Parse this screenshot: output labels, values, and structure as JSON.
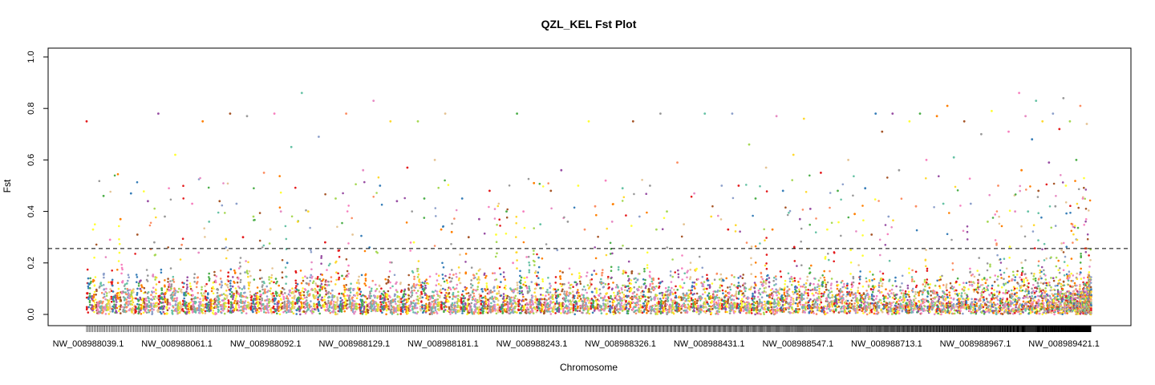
{
  "chart_data": {
    "type": "scatter",
    "title": "QZL_KEL Fst Plot",
    "xlabel": "Chromosome",
    "ylabel": "Fst",
    "ylim": [
      0,
      1
    ],
    "yticks": [
      "0.0",
      "0.2",
      "0.4",
      "0.6",
      "0.8",
      "1.0"
    ],
    "xticklabels": [
      "NW_008988039.1",
      "NW_008988061.1",
      "NW_008988092.1",
      "NW_008988129.1",
      "NW_008988181.1",
      "NW_008988243.1",
      "NW_008988326.1",
      "NW_008988431.1",
      "NW_008988547.1",
      "NW_008988713.1",
      "NW_008988967.1",
      "NW_008989421.1"
    ],
    "threshold": 0.256,
    "threshold_style": "dashed",
    "palette": [
      "#e41a1c",
      "#377eb8",
      "#4daf4a",
      "#984ea3",
      "#ff7f00",
      "#ffff33",
      "#a65628",
      "#f781bf",
      "#999999",
      "#66c2a5",
      "#fc8d62",
      "#8da0cb",
      "#e78ac3",
      "#a6d854",
      "#ffd92f",
      "#e5c494"
    ],
    "scaffold_count": 1250,
    "series": [
      {
        "values": [
          0.75,
          0.47,
          0.46,
          0.44,
          0.37,
          0.33,
          0.31,
          0.29,
          0.28,
          0.12,
          0.05,
          0.02
        ]
      },
      {
        "values": [
          0.78,
          0.75,
          0.62,
          0.44,
          0.43,
          0.38,
          0.36,
          0.27,
          0.26,
          0.24,
          0.1,
          0.03
        ]
      },
      {
        "values": [
          0.78,
          0.78,
          0.77,
          0.65,
          0.55,
          0.43,
          0.4,
          0.38,
          0.36,
          0.33,
          0.3,
          0.2,
          0.09,
          0.01
        ]
      },
      {
        "values": [
          0.86,
          0.78,
          0.69,
          0.56,
          0.45,
          0.4,
          0.31,
          0.28,
          0.26,
          0.15,
          0.02
        ]
      },
      {
        "values": [
          0.83,
          0.75,
          0.75,
          0.6,
          0.57,
          0.5,
          0.45,
          0.44,
          0.33,
          0.28,
          0.12,
          0.04
        ]
      },
      {
        "values": [
          0.78,
          0.48,
          0.45,
          0.4,
          0.37,
          0.32,
          0.31,
          0.3,
          0.2,
          0.03
        ]
      },
      {
        "values": [
          0.78,
          0.56,
          0.51,
          0.5,
          0.48,
          0.4,
          0.36,
          0.35,
          0.33,
          0.25,
          0.04
        ]
      },
      {
        "values": [
          0.75,
          0.75,
          0.52,
          0.5,
          0.49,
          0.42,
          0.38,
          0.36,
          0.33,
          0.05
        ]
      },
      {
        "values": [
          0.78,
          0.78,
          0.59,
          0.5,
          0.47,
          0.4,
          0.38,
          0.35,
          0.33,
          0.03
        ]
      },
      {
        "values": [
          0.78,
          0.77,
          0.66,
          0.62,
          0.57,
          0.5,
          0.48,
          0.45,
          0.37,
          0.33,
          0.04
        ]
      },
      {
        "values": [
          0.76,
          0.6,
          0.55,
          0.49,
          0.48,
          0.41,
          0.39,
          0.33,
          0.31,
          0.03
        ]
      },
      {
        "values": [
          0.78,
          0.78,
          0.78,
          0.77,
          0.75,
          0.71,
          0.6,
          0.56,
          0.43,
          0.42,
          0.38,
          0.05
        ]
      },
      {
        "values": [
          0.81,
          0.79,
          0.75,
          0.71,
          0.7,
          0.61,
          0.5,
          0.43,
          0.4,
          0.36,
          0.06
        ]
      },
      {
        "values": [
          0.86,
          0.84,
          0.83,
          0.81,
          0.78,
          0.77,
          0.75,
          0.75,
          0.74,
          0.72,
          0.68,
          0.6,
          0.59,
          0.56,
          0.5,
          0.48,
          0.45,
          0.42,
          0.4,
          0.35,
          0.07
        ]
      }
    ]
  }
}
